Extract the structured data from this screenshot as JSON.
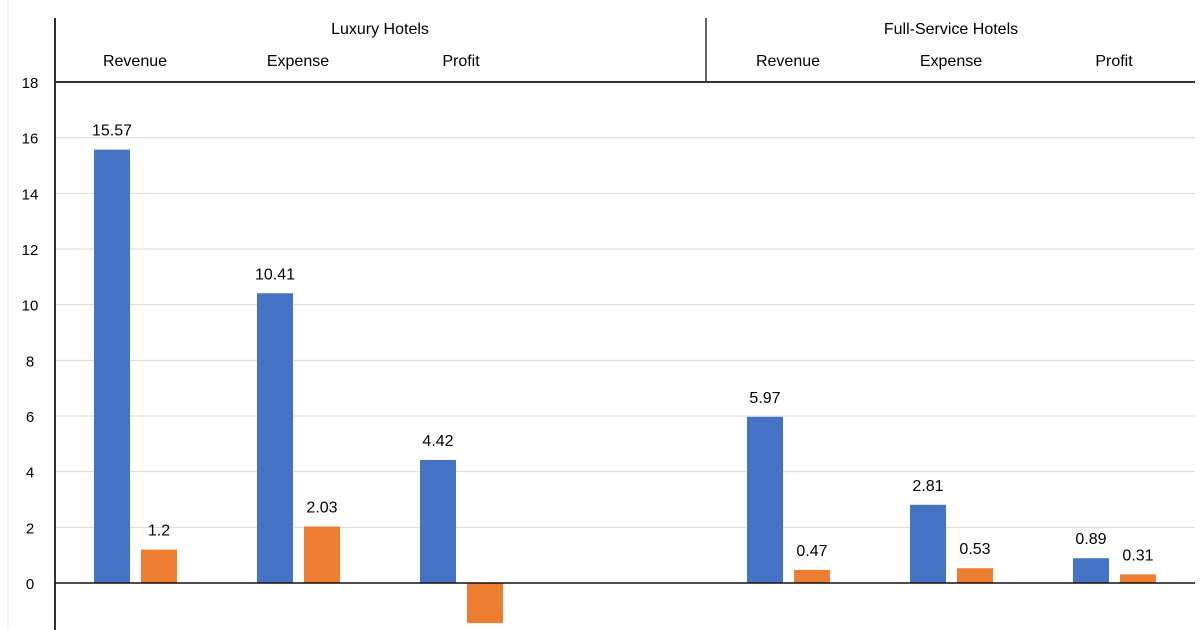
{
  "chart_data": {
    "type": "bar",
    "groups": [
      {
        "name": "Luxury Hotels",
        "categories": [
          "Revenue",
          "Expense",
          "Profit"
        ]
      },
      {
        "name": "Full-Service Hotels",
        "categories": [
          "Revenue",
          "Expense",
          "Profit"
        ]
      }
    ],
    "series": [
      {
        "name": "Series 1",
        "color": "#4472C4",
        "values": [
          15.57,
          10.41,
          4.42,
          5.97,
          2.81,
          0.89
        ],
        "labels": [
          "15.57",
          "10.41",
          "4.42",
          "5.97",
          "2.81",
          "0.89"
        ]
      },
      {
        "name": "Series 2",
        "color": "#ED7D31",
        "values": [
          1.2,
          2.03,
          -1.44,
          0.47,
          0.53,
          0.31
        ],
        "labels": [
          "1.2",
          "2.03",
          "",
          "0.47",
          "0.53",
          "0.31"
        ]
      }
    ],
    "yticks": [
      "0",
      "2",
      "4",
      "6",
      "8",
      "10",
      "12",
      "14",
      "16",
      "18"
    ],
    "ylim": [
      -1.7,
      18
    ],
    "grid": true,
    "title": "",
    "xlabel": "",
    "ylabel": ""
  }
}
